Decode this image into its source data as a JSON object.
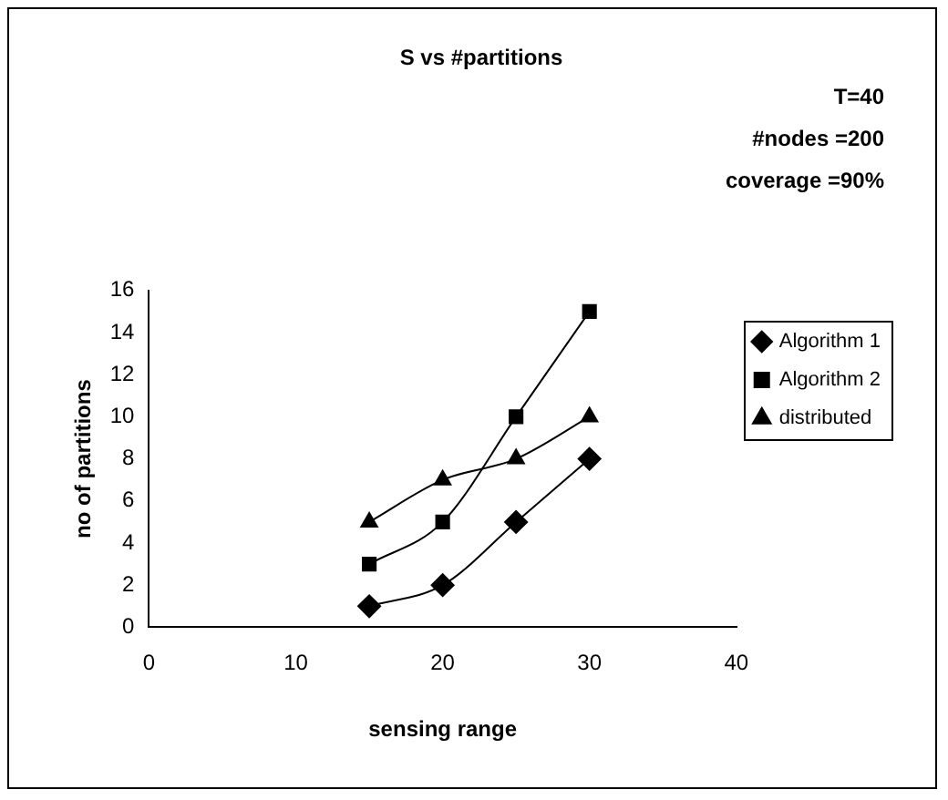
{
  "chart_data": {
    "type": "line",
    "title": "S vs #partitions",
    "xlabel": "sensing range",
    "ylabel": "no of partitions",
    "annotations": [
      "T=40",
      "#nodes =200",
      "coverage =90%"
    ],
    "x": [
      15,
      20,
      25,
      30
    ],
    "series": [
      {
        "name": "Algorithm 1",
        "color": "#000000",
        "marker": "diamond",
        "values": [
          1,
          2,
          5,
          8
        ]
      },
      {
        "name": "Algorithm 2",
        "color": "#000000",
        "marker": "square",
        "values": [
          3,
          5,
          10,
          15
        ]
      },
      {
        "name": "distributed",
        "color": "#000000",
        "marker": "triangle",
        "values": [
          5,
          7,
          8,
          10
        ]
      }
    ],
    "xlim": [
      0,
      40
    ],
    "xticks": [
      0,
      10,
      20,
      30,
      40
    ],
    "ylim": [
      0,
      16
    ],
    "yticks": [
      0,
      2,
      4,
      6,
      8,
      10,
      12,
      14,
      16
    ],
    "grid": false,
    "legend": "right",
    "line_style": "solid"
  }
}
